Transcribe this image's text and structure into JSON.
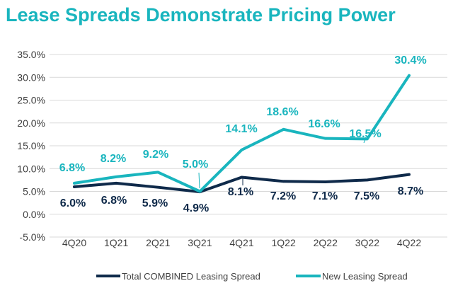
{
  "colors": {
    "new": "#19B5BE",
    "total": "#0F2A4A",
    "grid": "#D9D9D9",
    "title": "#19B5BE"
  },
  "chart_data": {
    "type": "line",
    "title": "Lease Spreads Demonstrate Pricing Power",
    "xlabel": "",
    "ylabel": "",
    "categories": [
      "4Q20",
      "1Q21",
      "2Q21",
      "3Q21",
      "4Q21",
      "1Q22",
      "2Q22",
      "3Q22",
      "4Q22"
    ],
    "ylim": [
      -5,
      35
    ],
    "yticks": [
      -5,
      0,
      5,
      10,
      15,
      20,
      25,
      30,
      35
    ],
    "ytick_labels": [
      "-5.0%",
      "0.0%",
      "5.0%",
      "10.0%",
      "15.0%",
      "20.0%",
      "25.0%",
      "30.0%",
      "35.0%"
    ],
    "series": [
      {
        "name": "Total COMBINED Leasing Spread",
        "key": "total",
        "values": [
          6.0,
          6.8,
          5.9,
          4.9,
          8.1,
          7.2,
          7.1,
          7.5,
          8.7
        ],
        "labels": [
          "6.0%",
          "6.8%",
          "5.9%",
          "4.9%",
          "8.1%",
          "7.2%",
          "7.1%",
          "7.5%",
          "8.7%"
        ]
      },
      {
        "name": "New Leasing Spread",
        "key": "new",
        "values": [
          6.8,
          8.2,
          9.2,
          5.0,
          14.1,
          18.6,
          16.6,
          16.5,
          30.4
        ],
        "labels": [
          "6.8%",
          "8.2%",
          "9.2%",
          "5.0%",
          "14.1%",
          "18.6%",
          "16.6%",
          "16.5%",
          "30.4%"
        ]
      }
    ],
    "legend_position": "bottom"
  }
}
